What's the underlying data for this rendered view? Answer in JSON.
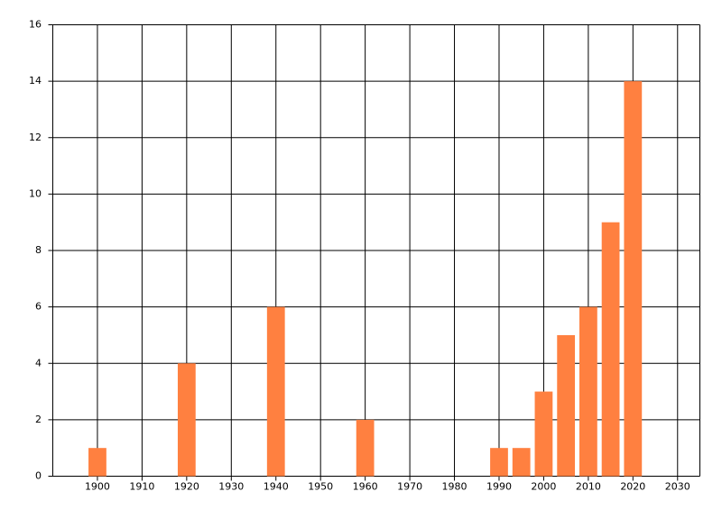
{
  "chart_data": {
    "type": "bar",
    "x": [
      1900,
      1920,
      1940,
      1960,
      1990,
      1995,
      2000,
      2005,
      2010,
      2015,
      2020
    ],
    "values": [
      1,
      4,
      6,
      2,
      1,
      1,
      3,
      5,
      6,
      9,
      14
    ],
    "color": "#ff8040",
    "xlim": [
      1890,
      2035
    ],
    "xticks": [
      1900,
      1910,
      1920,
      1930,
      1940,
      1950,
      1960,
      1970,
      1980,
      1990,
      2000,
      2010,
      2020,
      2030
    ],
    "ylim": [
      0,
      16
    ],
    "yticks": [
      0,
      2,
      4,
      6,
      8,
      10,
      12,
      14,
      16
    ],
    "bar_width": 4,
    "grid": true
  }
}
